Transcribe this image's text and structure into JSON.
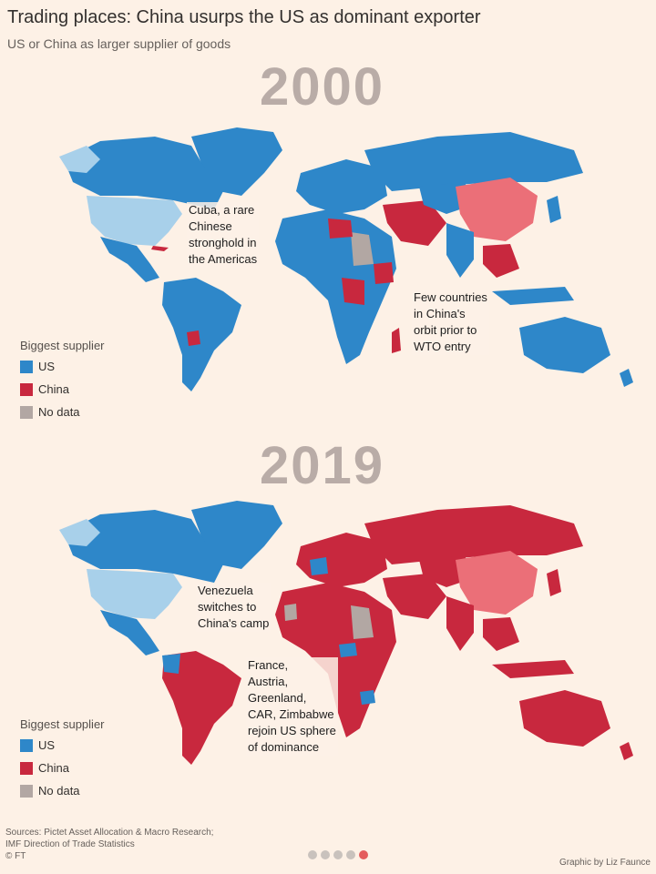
{
  "header": {
    "title": "Trading places: China usurps the US as dominant exporter",
    "subtitle": "US or China as larger supplier of goods"
  },
  "colors": {
    "us": "#2e87c9",
    "us_light": "#a8d0ea",
    "china": "#c8283e",
    "china_light": "#eb6f78",
    "no_data": "#b2a7a3",
    "background": "#fdf1e6"
  },
  "map_2000": {
    "year": "2000",
    "annotations": {
      "cuba": "Cuba, a rare\nChinese\nstronghold in\nthe Americas",
      "china_orbit": "Few countries\nin China's\norbit prior to\nWTO entry"
    },
    "legend": {
      "title": "Biggest supplier",
      "items": [
        "US",
        "China",
        "No data"
      ]
    }
  },
  "map_2019": {
    "year": "2019",
    "annotations": {
      "venezuela": "Venezuela\nswitches to\nChina's camp",
      "rejoin": "France,\nAustria,\nGreenland,\nCAR, Zimbabwe\nrejoin US sphere\nof dominance"
    },
    "legend": {
      "title": "Biggest supplier",
      "items": [
        "US",
        "China",
        "No data"
      ]
    }
  },
  "footer": {
    "sources": "Sources: Pictet Asset Allocation & Macro Research;\nIMF Direction of Trade Statistics\n© FT",
    "credit": "Graphic by Liz Faunce",
    "pager": {
      "total": 5,
      "active": 5
    }
  }
}
